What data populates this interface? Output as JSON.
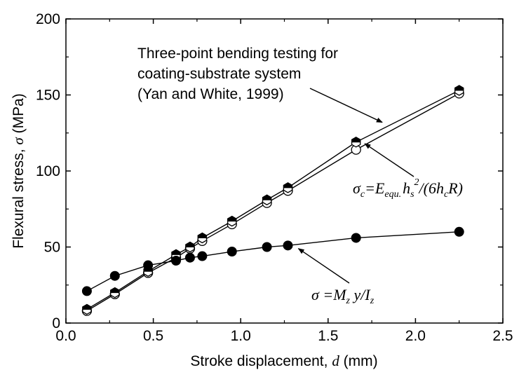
{
  "chart_data": {
    "type": "line",
    "xlabel": {
      "text": "Stroke displacement, ",
      "symbol": "d",
      "unit": " (mm)"
    },
    "ylabel": {
      "text": "Flexural stress, ",
      "symbol": "σ",
      "unit": " (MPa)"
    },
    "xlim": [
      0.0,
      2.5
    ],
    "ylim": [
      0,
      200
    ],
    "x_ticks": [
      0.0,
      0.5,
      1.0,
      1.5,
      2.0,
      2.5
    ],
    "x_tick_labels": [
      "0.0",
      "0.5",
      "1.0",
      "1.5",
      "2.0",
      "2.5"
    ],
    "y_ticks": [
      0,
      50,
      100,
      150,
      200
    ],
    "y_tick_labels": [
      "0",
      "50",
      "100",
      "150",
      "200"
    ],
    "grid": false,
    "legend": "none",
    "series": [
      {
        "marker": "half-filled-hexagon",
        "x": [
          0.12,
          0.28,
          0.47,
          0.63,
          0.71,
          0.78,
          0.95,
          1.15,
          1.27,
          1.66,
          2.25
        ],
        "y": [
          9,
          20,
          34,
          45,
          50,
          56,
          67,
          81,
          89,
          119,
          153
        ]
      },
      {
        "marker": "open-circle",
        "x": [
          0.12,
          0.28,
          0.47,
          0.63,
          0.71,
          0.78,
          0.95,
          1.15,
          1.27,
          1.66,
          2.25
        ],
        "y": [
          8,
          19,
          33,
          43,
          49,
          54,
          65,
          79,
          87,
          114,
          151
        ]
      },
      {
        "marker": "filled-circle",
        "x": [
          0.12,
          0.28,
          0.47,
          0.63,
          0.71,
          0.78,
          0.95,
          1.15,
          1.27,
          1.66,
          2.25
        ],
        "y": [
          21,
          31,
          38,
          41,
          43,
          44,
          47,
          50,
          51,
          56,
          60
        ]
      }
    ],
    "annotations": {
      "three_point": {
        "lines": [
          "Three-point bending testing for",
          "coating-substrate system",
          "(Yan and White, 1999)"
        ],
        "points_to": {
          "x": 1.81,
          "y": 132
        }
      },
      "sigma_c_formula": {
        "parts": [
          "σ",
          "c",
          "=E",
          "equ.",
          "h",
          "s",
          "2",
          "/(6h",
          "c",
          "R)"
        ],
        "points_to": {
          "x": 1.71,
          "y": 118
        }
      },
      "sigma_formula": {
        "parts": [
          "σ",
          " =M",
          "z",
          " y/I",
          "z"
        ],
        "points_to": {
          "x": 1.33,
          "y": 49
        }
      }
    }
  }
}
